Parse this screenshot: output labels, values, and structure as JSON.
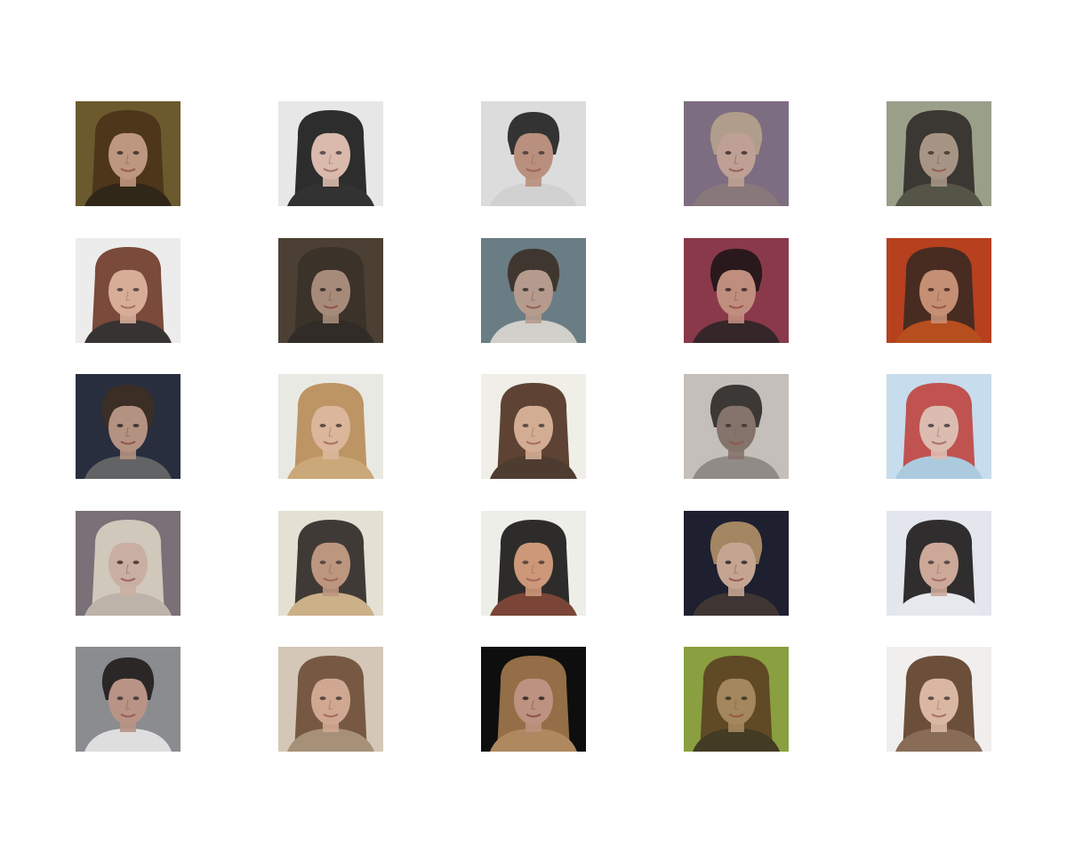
{
  "grid": {
    "rows": 5,
    "cols": 5,
    "tiles": [
      {
        "label": "face-r1c1",
        "bg": "#6b5a2e",
        "hair": "#4a3218",
        "skin": "#c9a08a",
        "top": "#2a2016",
        "hairStyle": "long"
      },
      {
        "label": "face-r1c2",
        "bg": "#e8e8e8",
        "hair": "#141414",
        "skin": "#d8b4a6",
        "top": "#1a1a1a",
        "hairStyle": "long"
      },
      {
        "label": "face-r1c3",
        "bg": "#dcdcdc",
        "hair": "#1c1c1c",
        "skin": "#b48470",
        "top": "#d0d0d0",
        "hairStyle": "short"
      },
      {
        "label": "face-r1c4",
        "bg": "#7e6e80",
        "hair": "#b8a48c",
        "skin": "#c8a898",
        "top": "#8a7a7a",
        "hairStyle": "short"
      },
      {
        "label": "face-r1c5",
        "bg": "#9aa08a",
        "hair": "#2e2a26",
        "skin": "#a89484",
        "top": "#4a4a3e",
        "hairStyle": "long"
      },
      {
        "label": "face-r2c1",
        "bg": "#ececec",
        "hair": "#6a3422",
        "skin": "#d4a48c",
        "top": "#1e1a1a",
        "hairStyle": "long"
      },
      {
        "label": "face-r2c2",
        "bg": "#4c4034",
        "hair": "#3a3028",
        "skin": "#b49684",
        "top": "#2e2a26",
        "hairStyle": "long"
      },
      {
        "label": "face-r2c3",
        "bg": "#6a7e84",
        "hair": "#3a2e24",
        "skin": "#c0a090",
        "top": "#e0dcd4",
        "hairStyle": "short"
      },
      {
        "label": "face-r2c4",
        "bg": "#8a3a4c",
        "hair": "#1c1416",
        "skin": "#c89a86",
        "top": "#2a2426",
        "hairStyle": "short"
      },
      {
        "label": "face-r2c5",
        "bg": "#b8401e",
        "hair": "#3a2a22",
        "skin": "#c89a80",
        "top": "#b8501e",
        "hairStyle": "long"
      },
      {
        "label": "face-r3c1",
        "bg": "#2a2e3e",
        "hair": "#3e2e22",
        "skin": "#c8a08a",
        "top": "#6a6a6a",
        "hairStyle": "short"
      },
      {
        "label": "face-r3c2",
        "bg": "#eaeae4",
        "hair": "#b88a52",
        "skin": "#dab090",
        "top": "#c8a06a",
        "hairStyle": "long"
      },
      {
        "label": "face-r3c3",
        "bg": "#f0eee8",
        "hair": "#4a2c1c",
        "skin": "#d0a488",
        "top": "#3a2418",
        "hairStyle": "long"
      },
      {
        "label": "face-r3c4",
        "bg": "#c4c0ba",
        "hair": "#2a2624",
        "skin": "#7c6a60",
        "top": "#8a8480",
        "hairStyle": "short"
      },
      {
        "label": "face-r3c5",
        "bg": "#c8dcec",
        "hair": "#c0403a",
        "skin": "#e0b8a8",
        "top": "#a8c8dc",
        "hairStyle": "long"
      },
      {
        "label": "face-r4c1",
        "bg": "#7a7078",
        "hair": "#dcd4c4",
        "skin": "#d4b8a8",
        "top": "#c8bcb0",
        "hairStyle": "long"
      },
      {
        "label": "face-r4c2",
        "bg": "#e4e2d4",
        "hair": "#2a2420",
        "skin": "#b88c74",
        "top": "#c8aa7e",
        "hairStyle": "long"
      },
      {
        "label": "face-r4c3",
        "bg": "#eeeeea",
        "hair": "#141210",
        "skin": "#c88c6a",
        "top": "#6a2e1e",
        "hairStyle": "long"
      },
      {
        "label": "face-r4c4",
        "bg": "#1e2030",
        "hair": "#b8946a",
        "skin": "#dcb8a0",
        "top": "#443a34",
        "hairStyle": "short"
      },
      {
        "label": "face-r4c5",
        "bg": "#e4e6ee",
        "hair": "#161414",
        "skin": "#c8a08c",
        "top": "#e8e8ee",
        "hairStyle": "long"
      },
      {
        "label": "face-r5c1",
        "bg": "#8a8c90",
        "hair": "#1e1a18",
        "skin": "#c09484",
        "top": "#eaeaea",
        "hairStyle": "short"
      },
      {
        "label": "face-r5c2",
        "bg": "#d4c8b8",
        "hair": "#6a4a34",
        "skin": "#d0a48c",
        "top": "#a08a70",
        "hairStyle": "long"
      },
      {
        "label": "face-r5c3",
        "bg": "#0e0e0e",
        "hair": "#a67c4e",
        "skin": "#d4a490",
        "top": "#c49a6a",
        "hairStyle": "long"
      },
      {
        "label": "face-r5c4",
        "bg": "#8aa040",
        "hair": "#5a3e22",
        "skin": "#a88460",
        "top": "#3a2e20",
        "hairStyle": "long"
      },
      {
        "label": "face-r5c5",
        "bg": "#f2f0ee",
        "hair": "#5a3a22",
        "skin": "#d8b098",
        "top": "#7a5a44",
        "hairStyle": "long"
      }
    ]
  }
}
